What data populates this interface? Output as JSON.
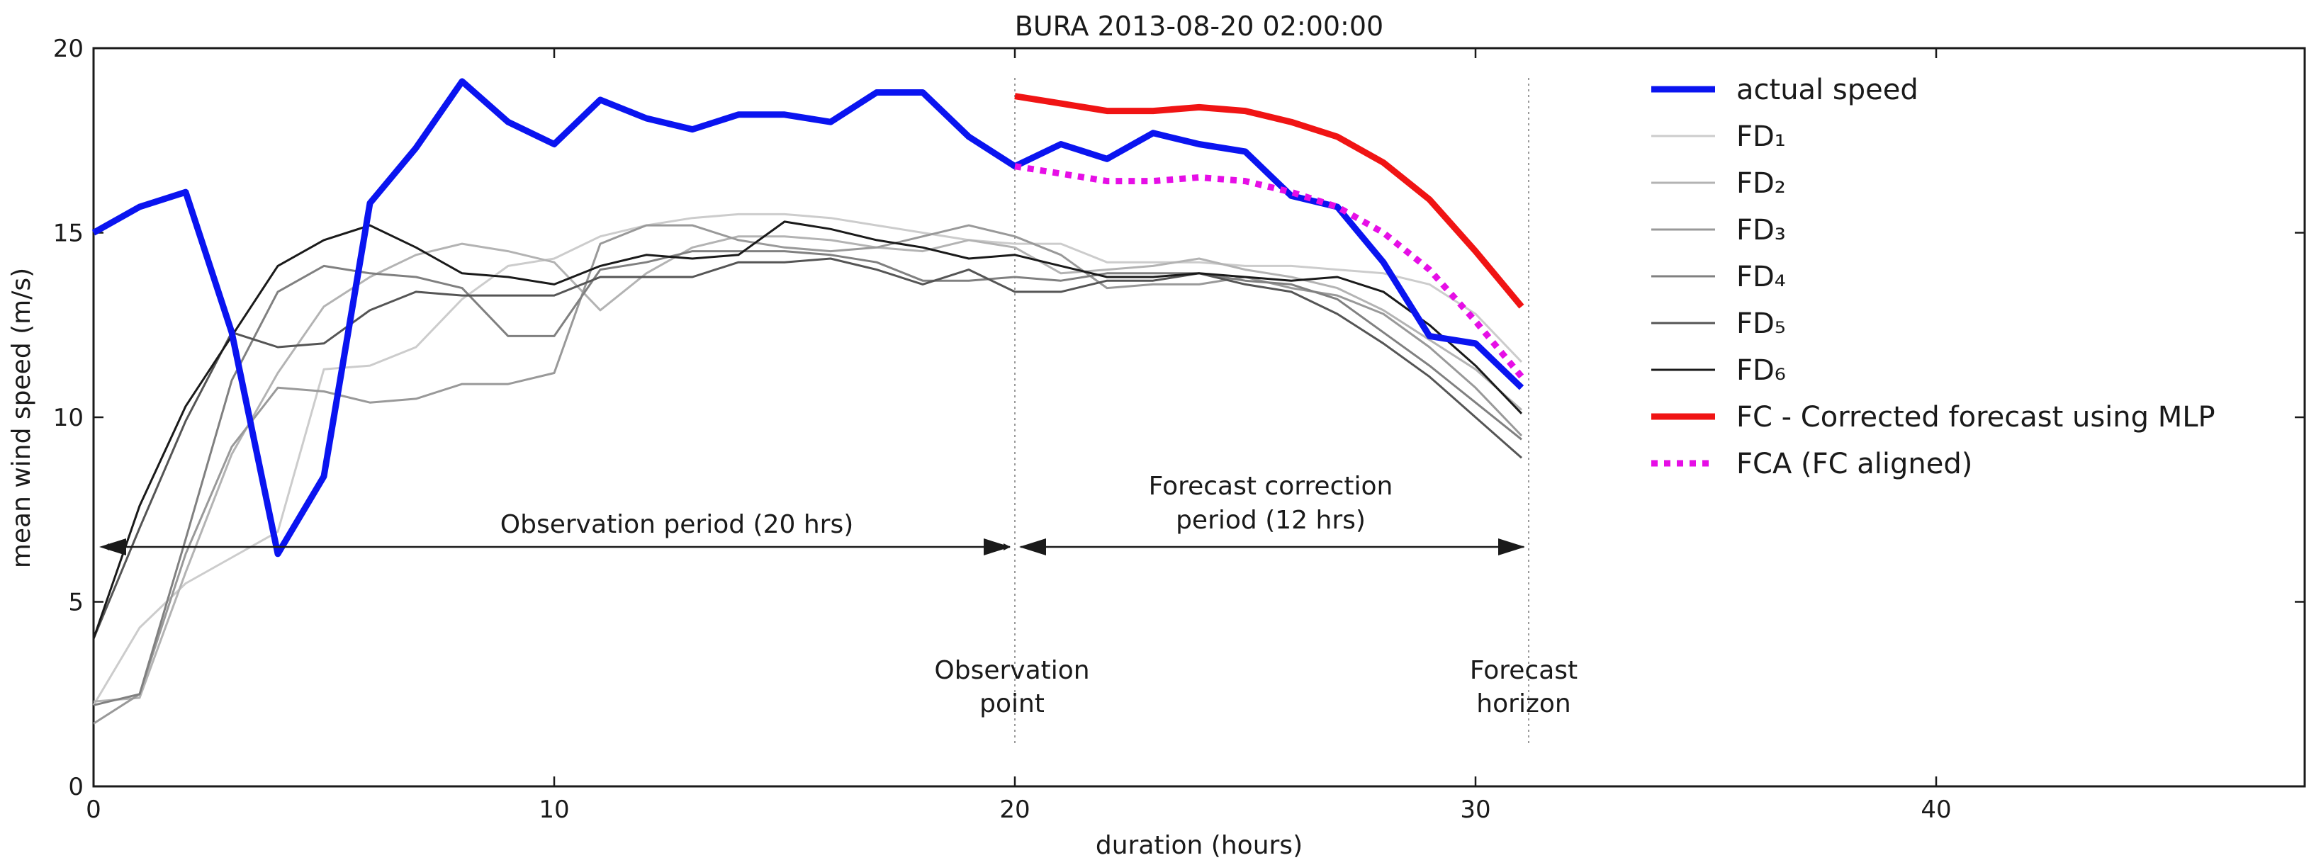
{
  "chart_data": {
    "type": "line",
    "title": "BURA 2013-08-20 02:00:00",
    "xlabel": "duration (hours)",
    "ylabel": "mean wind speed (m/s)",
    "xlim": [
      0,
      48
    ],
    "ylim": [
      0,
      20
    ],
    "xticks": [
      0,
      10,
      20,
      30,
      40
    ],
    "yticks": [
      0,
      5,
      10,
      15,
      20
    ],
    "grid": false,
    "legend_position": "right",
    "series": [
      {
        "name": "actual speed",
        "color": "#0a14f0",
        "style": "solid-thick",
        "x": [
          0,
          1,
          2,
          3,
          4,
          5,
          6,
          7,
          8,
          9,
          10,
          11,
          12,
          13,
          14,
          15,
          16,
          17,
          18,
          19,
          20,
          21,
          22,
          23,
          24,
          25,
          26,
          27,
          28,
          29,
          30,
          31
        ],
        "values": [
          15,
          15.7,
          16.1,
          12.3,
          6.3,
          8.4,
          15.8,
          17.3,
          19.1,
          18,
          17.4,
          18.6,
          18.1,
          17.8,
          18.2,
          18.2,
          18,
          18.8,
          18.8,
          17.6,
          16.8,
          17.4,
          17,
          17.7,
          17.4,
          17.2,
          16,
          15.7,
          14.2,
          12.2,
          12,
          10.8
        ]
      },
      {
        "name": "FD₁",
        "color": "#cccccc",
        "style": "solid-thin",
        "x": [
          0,
          1,
          2,
          3,
          4,
          5,
          6,
          7,
          8,
          9,
          10,
          11,
          12,
          13,
          14,
          15,
          16,
          17,
          18,
          19,
          20,
          21,
          22,
          23,
          24,
          25,
          26,
          27,
          28,
          29,
          30,
          31
        ],
        "values": [
          2.2,
          4.3,
          5.5,
          6.2,
          6.9,
          11.3,
          11.4,
          11.9,
          13.2,
          14.1,
          14.3,
          14.9,
          15.2,
          15.4,
          15.5,
          15.5,
          15.4,
          15.2,
          15.0,
          14.8,
          14.7,
          14.7,
          14.2,
          14.2,
          14.2,
          14.1,
          14.1,
          14.0,
          13.9,
          13.6,
          12.8,
          11.5
        ]
      },
      {
        "name": "FD₂",
        "color": "#b3b3b3",
        "style": "solid-thin",
        "x": [
          0,
          1,
          2,
          3,
          4,
          5,
          6,
          7,
          8,
          9,
          10,
          11,
          12,
          13,
          14,
          15,
          16,
          17,
          18,
          19,
          20,
          21,
          22,
          23,
          24,
          25,
          26,
          27,
          28,
          29,
          30,
          31
        ],
        "values": [
          2.3,
          2.4,
          5.8,
          9.0,
          11.2,
          13.0,
          13.8,
          14.4,
          14.7,
          14.5,
          14.2,
          12.9,
          13.9,
          14.6,
          14.9,
          14.9,
          14.8,
          14.6,
          14.5,
          14.8,
          14.6,
          13.9,
          14.0,
          14.1,
          14.3,
          14.0,
          13.8,
          13.5,
          12.9,
          12.1,
          11.3,
          10.2
        ]
      },
      {
        "name": "FD₃",
        "color": "#999999",
        "style": "solid-thin",
        "x": [
          0,
          1,
          2,
          3,
          4,
          5,
          6,
          7,
          8,
          9,
          10,
          11,
          12,
          13,
          14,
          15,
          16,
          17,
          18,
          19,
          20,
          21,
          22,
          23,
          24,
          25,
          26,
          27,
          28,
          29,
          30,
          31
        ],
        "values": [
          1.7,
          2.5,
          6.3,
          9.2,
          10.8,
          10.7,
          10.4,
          10.5,
          10.9,
          10.9,
          11.2,
          14.7,
          15.2,
          15.2,
          14.8,
          14.6,
          14.5,
          14.6,
          14.9,
          15.2,
          14.9,
          14.4,
          13.5,
          13.6,
          13.6,
          13.8,
          13.5,
          13.3,
          12.8,
          11.9,
          10.8,
          9.5
        ]
      },
      {
        "name": "FD₄",
        "color": "#808080",
        "style": "solid-thin",
        "x": [
          0,
          1,
          2,
          3,
          4,
          5,
          6,
          7,
          8,
          9,
          10,
          11,
          12,
          13,
          14,
          15,
          16,
          17,
          18,
          19,
          20,
          21,
          22,
          23,
          24,
          25,
          26,
          27,
          28,
          29,
          30,
          31
        ],
        "values": [
          2.2,
          2.5,
          6.7,
          11.0,
          13.4,
          14.1,
          13.9,
          13.8,
          13.5,
          12.2,
          12.2,
          14.0,
          14.2,
          14.5,
          14.5,
          14.5,
          14.4,
          14.2,
          13.7,
          13.7,
          13.8,
          13.7,
          13.9,
          13.9,
          13.9,
          13.7,
          13.6,
          13.2,
          12.3,
          11.4,
          10.4,
          9.4
        ]
      },
      {
        "name": "FD₅",
        "color": "#555555",
        "style": "solid-thin",
        "x": [
          0,
          1,
          2,
          3,
          4,
          5,
          6,
          7,
          8,
          9,
          10,
          11,
          12,
          13,
          14,
          15,
          16,
          17,
          18,
          19,
          20,
          21,
          22,
          23,
          24,
          25,
          26,
          27,
          28,
          29,
          30,
          31
        ],
        "values": [
          4.0,
          7.0,
          9.9,
          12.3,
          11.9,
          12.0,
          12.9,
          13.4,
          13.3,
          13.3,
          13.3,
          13.8,
          13.8,
          13.8,
          14.2,
          14.2,
          14.3,
          14.0,
          13.6,
          14.0,
          13.4,
          13.4,
          13.7,
          13.7,
          13.9,
          13.6,
          13.4,
          12.8,
          12.0,
          11.1,
          10.0,
          8.9
        ]
      },
      {
        "name": "FD₆",
        "color": "#1a1a1a",
        "style": "solid-thin",
        "x": [
          0,
          1,
          2,
          3,
          4,
          5,
          6,
          7,
          8,
          9,
          10,
          11,
          12,
          13,
          14,
          15,
          16,
          17,
          18,
          19,
          20,
          21,
          22,
          23,
          24,
          25,
          26,
          27,
          28,
          29,
          30,
          31
        ],
        "values": [
          4.0,
          7.6,
          10.3,
          12.2,
          14.1,
          14.8,
          15.2,
          14.6,
          13.9,
          13.8,
          13.6,
          14.1,
          14.4,
          14.3,
          14.4,
          15.3,
          15.1,
          14.8,
          14.6,
          14.3,
          14.4,
          14.1,
          13.8,
          13.8,
          13.9,
          13.8,
          13.7,
          13.8,
          13.4,
          12.5,
          11.4,
          10.1
        ]
      },
      {
        "name": "FC - Corrected forecast using MLP",
        "color": "#f01414",
        "style": "solid-thick",
        "x": [
          20,
          21,
          22,
          23,
          24,
          25,
          26,
          27,
          28,
          29,
          30,
          31
        ],
        "values": [
          18.7,
          18.5,
          18.3,
          18.3,
          18.4,
          18.3,
          18.0,
          17.6,
          16.9,
          15.9,
          14.5,
          13.0
        ]
      },
      {
        "name": "FCA (FC aligned)",
        "color": "#e60ee6",
        "style": "dotted",
        "x": [
          20,
          21,
          22,
          23,
          24,
          25,
          26,
          27,
          28,
          29,
          30,
          31
        ],
        "values": [
          16.8,
          16.6,
          16.4,
          16.4,
          16.5,
          16.4,
          16.1,
          15.7,
          15.0,
          14.0,
          12.6,
          11.1
        ]
      }
    ],
    "annotations": {
      "observation_period": {
        "text": "Observation period (20 hrs)",
        "from_x": 0,
        "to_x": 20,
        "y": 6.4
      },
      "forecast_period": {
        "line1": "Forecast correction",
        "line2": "period (12 hrs)",
        "from_x": 20,
        "to_x": 31,
        "y": 6.4
      },
      "observation_point": {
        "line1": "Observation",
        "line2": "point",
        "x": 20
      },
      "forecast_horizon": {
        "line1": "Forecast",
        "line2": "horizon",
        "x": 31
      }
    }
  }
}
